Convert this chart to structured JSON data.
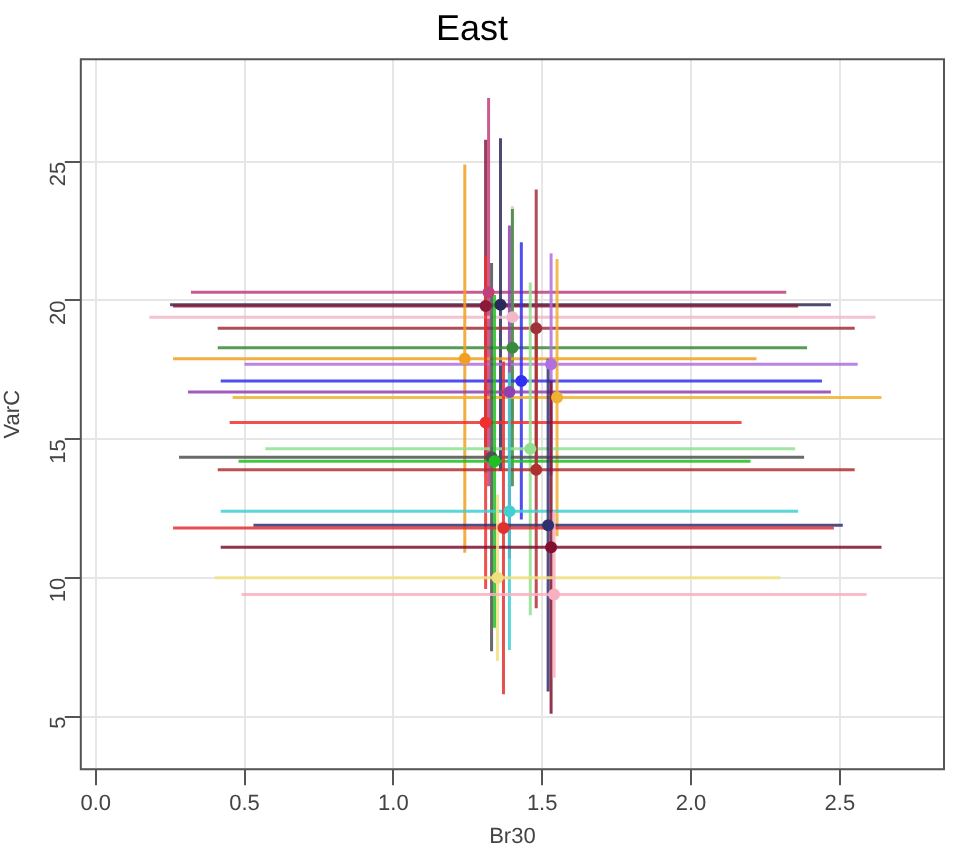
{
  "chart_data": {
    "type": "scatter",
    "title": "East",
    "xlabel": "Br30",
    "ylabel": "VarC",
    "x": [
      1.32,
      1.36,
      1.31,
      1.4,
      1.48,
      1.4,
      1.24,
      1.53,
      1.43,
      1.39,
      1.55,
      1.31,
      1.46,
      1.33,
      1.34,
      1.48,
      1.39,
      1.52,
      1.37,
      1.53,
      1.35,
      1.54
    ],
    "values": [
      20.3,
      19.85,
      19.8,
      19.4,
      19.0,
      18.3,
      17.9,
      17.7,
      17.1,
      16.7,
      16.5,
      15.6,
      14.65,
      14.35,
      14.2,
      13.9,
      12.4,
      11.9,
      11.8,
      11.1,
      10.0,
      9.4
    ],
    "xerrors": [
      1.0,
      1.11,
      1.05,
      1.22,
      1.07,
      0.99,
      0.98,
      1.03,
      1.01,
      1.08,
      1.09,
      0.86,
      0.89,
      1.05,
      0.86,
      1.07,
      0.97,
      0.99,
      1.11,
      1.11,
      0.95,
      1.05
    ],
    "errors": [
      7,
      6,
      6,
      4,
      5,
      5,
      7,
      4,
      5,
      6,
      5,
      6,
      6,
      7,
      6,
      5,
      5,
      6,
      6,
      6,
      3,
      3
    ],
    "colors": [
      "#c0407a",
      "#2a2a5a",
      "#8b1a3a",
      "#f2b8c8",
      "#a0303a",
      "#3a8a3a",
      "#f0a020",
      "#b070e0",
      "#3030f0",
      "#9040b0",
      "#f0b030",
      "#f03030",
      "#90e090",
      "#505050",
      "#20c020",
      "#b03030",
      "#40d0d0",
      "#303070",
      "#e03030",
      "#801030",
      "#f0e080",
      "#f8b0c0"
    ],
    "marker": "circle",
    "xlim": [
      -0.05,
      2.85
    ],
    "ylim": [
      3.1,
      28.7
    ],
    "xticks": [
      {
        "value": 0,
        "label": "0.0"
      },
      {
        "value": 0.5,
        "label": "0.5"
      },
      {
        "value": 1,
        "label": "1.0"
      },
      {
        "value": 1.5,
        "label": "1.5"
      },
      {
        "value": 2,
        "label": "2.0"
      },
      {
        "value": 2.5,
        "label": "2.5"
      }
    ],
    "yticks": [
      5,
      10,
      15,
      20,
      25
    ],
    "grid": true
  }
}
